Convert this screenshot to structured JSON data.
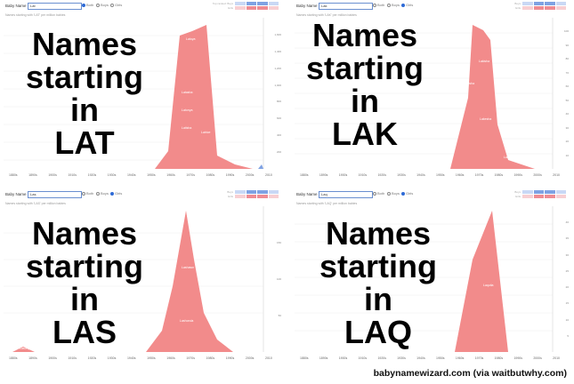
{
  "panels": [
    {
      "input_value": "Lat",
      "radio": [
        "Both",
        "Boys",
        "Girls"
      ],
      "selected": "Both",
      "rank_labels": [
        "Top ranked: Boys",
        "Girls"
      ],
      "subtitle": "Names starting with 'LAT' per million babies",
      "overlay": "Names\nstarting in\nLAT",
      "x_ticks": [
        "1880s",
        "1890s",
        "1900s",
        "1910s",
        "1920s",
        "1930s",
        "1940s",
        "1950s",
        "1960s",
        "1970s",
        "1980s",
        "1990s",
        "2000s",
        "2010"
      ],
      "y_ticks": [
        "1,600",
        "1,400",
        "1,200",
        "1,000",
        "800",
        "600",
        "400",
        "200"
      ],
      "inner_labels": [
        "Latoya",
        "Latasha",
        "Latonya",
        "Latisha",
        "Latrice",
        "Latanya",
        "Latina"
      ]
    },
    {
      "input_value": "Lak",
      "radio": [
        "Both",
        "Boys",
        "Girls"
      ],
      "selected": "Girls",
      "rank_labels": [
        "Boys",
        "Girls"
      ],
      "subtitle": "Names starting with 'LAK' per million babies",
      "overlay": "Names\nstarting in\nLAK",
      "x_ticks": [
        "1880s",
        "1890s",
        "1900s",
        "1910s",
        "1920s",
        "1930s",
        "1940s",
        "1950s",
        "1960s",
        "1970s",
        "1980s",
        "1990s",
        "2000s",
        "2010"
      ],
      "y_ticks": [
        "100",
        "90",
        "80",
        "70",
        "60",
        "50",
        "40",
        "30",
        "20",
        "10"
      ],
      "inner_labels": [
        "Lakisha",
        "Lakeisha",
        "Lakesha",
        "Lakeshia"
      ]
    },
    {
      "input_value": "Las",
      "radio": [
        "Both",
        "Boys",
        "Girls"
      ],
      "selected": "Girls",
      "rank_labels": [
        "Boys",
        "Girls"
      ],
      "subtitle": "Names starting with 'LAS' per million babies",
      "overlay": "Names\nstarting in\nLAS",
      "x_ticks": [
        "1880s",
        "1890s",
        "1900s",
        "1910s",
        "1920s",
        "1930s",
        "1940s",
        "1950s",
        "1960s",
        "1970s",
        "1980s",
        "1990s",
        "2000s",
        "2010"
      ],
      "y_ticks": [
        "150",
        "100",
        "50"
      ],
      "inner_labels": [
        "Lashawn",
        "Lashonda",
        "Lasonya"
      ]
    },
    {
      "input_value": "Laq",
      "radio": [
        "Both",
        "Boys",
        "Girls"
      ],
      "selected": "Girls",
      "rank_labels": [
        "Boys",
        "Girls"
      ],
      "subtitle": "Names starting with 'LAQ' per million babies",
      "overlay": "Names\nstarting in\nLAQ",
      "x_ticks": [
        "1880s",
        "1890s",
        "1900s",
        "1910s",
        "1920s",
        "1930s",
        "1940s",
        "1950s",
        "1960s",
        "1970s",
        "1980s",
        "1990s",
        "2000s",
        "2010"
      ],
      "y_ticks": [
        "40",
        "35",
        "30",
        "25",
        "20",
        "15",
        "10",
        "5"
      ],
      "inner_labels": [
        "Laquita"
      ]
    }
  ],
  "credit": "babynamewizard.com (via waitbutwhy.com)",
  "colors": {
    "area": "#f28b8b",
    "accent": "#2f6bd6"
  }
}
